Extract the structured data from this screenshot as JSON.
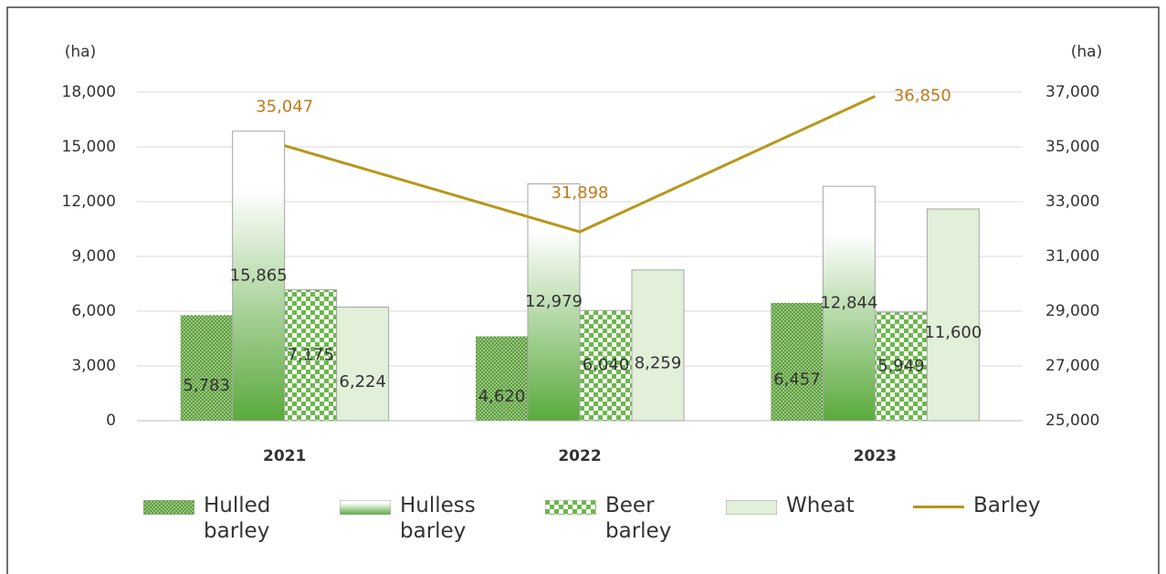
{
  "chart_data": {
    "type": "bar-line",
    "y_label": "(ha)",
    "y2_label": "(ha)",
    "categories": [
      "2021",
      "2022",
      "2023"
    ],
    "series": [
      {
        "name": "Hulled barley",
        "type": "bar",
        "color": "#5a9e3a",
        "values": [
          5783,
          4620,
          6457
        ],
        "value_labels": [
          "5,783",
          "4,620",
          "6,457"
        ]
      },
      {
        "name": "Hulless barley",
        "type": "bar",
        "color": "#5aaa3c",
        "values": [
          15865,
          12979,
          12844
        ],
        "value_labels": [
          "15,865",
          "12,979",
          "12,844"
        ]
      },
      {
        "name": "Beer barley",
        "type": "bar",
        "color": "#6ab84a",
        "values": [
          7175,
          6040,
          5949
        ],
        "value_labels": [
          "7,175",
          "6,040",
          "5,949"
        ]
      },
      {
        "name": "Wheat",
        "type": "bar",
        "color": "#e2efd9",
        "values": [
          6224,
          8259,
          11600
        ],
        "value_labels": [
          "6,224",
          "8,259",
          "11,600"
        ]
      },
      {
        "name": "Barley",
        "type": "line",
        "axis": "y2",
        "color": "#b8961a",
        "values": [
          35047,
          31898,
          36850
        ],
        "value_labels": [
          "35,047",
          "31,898",
          "36,850"
        ]
      }
    ],
    "ylim": [
      0,
      18000
    ],
    "yticks": [
      0,
      {
        "value": 3000,
        "label": "3,000"
      },
      {
        "value": 6000,
        "label": "6,000"
      },
      {
        "value": 9000,
        "label": "9,000"
      },
      {
        "value": 12000,
        "label": "12,000"
      },
      {
        "value": 15000,
        "label": "15,000"
      },
      {
        "value": 18000,
        "label": "18,000"
      }
    ],
    "y2lim": [
      25000,
      37000
    ],
    "y2ticks": [
      {
        "value": 25000,
        "label": "25,000"
      },
      {
        "value": 27000,
        "label": "27,000"
      },
      {
        "value": 29000,
        "label": "29,000"
      },
      {
        "value": 31000,
        "label": "31,000"
      },
      {
        "value": 33000,
        "label": "33,000"
      },
      {
        "value": 35000,
        "label": "35,000"
      },
      {
        "value": 37000,
        "label": "37,000"
      }
    ],
    "grid": true,
    "legend": "bottom"
  }
}
